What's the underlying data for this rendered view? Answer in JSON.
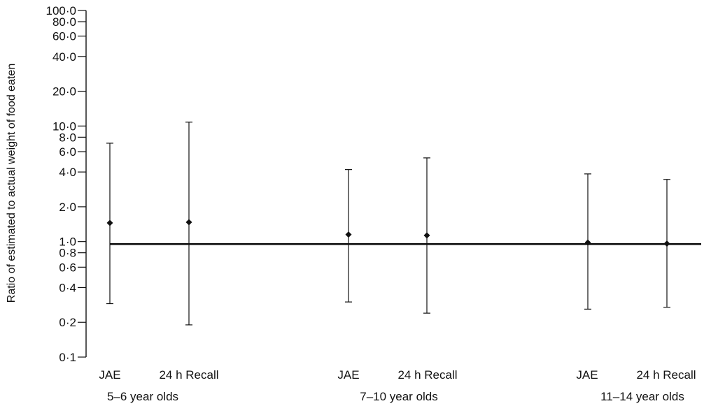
{
  "chart_data": {
    "type": "scatter",
    "title": "",
    "ylabel": "Ratio of estimated to actual weight of food eaten",
    "y_scale": "log",
    "ylim": [
      0.1,
      100.0
    ],
    "y_ticks": [
      0.1,
      0.2,
      0.4,
      0.6,
      0.8,
      1.0,
      2.0,
      4.0,
      6.0,
      8.0,
      10.0,
      20.0,
      40.0,
      60.0,
      80.0,
      100.0
    ],
    "y_tick_labels": [
      "0·1",
      "0·2",
      "0·4",
      "0·6",
      "0·8",
      "1·0",
      "2·0",
      "4·0",
      "6·0",
      "8·0",
      "10·0",
      "20·0",
      "40·0",
      "60·0",
      "80·0",
      "100·0"
    ],
    "reference_line": 0.95,
    "grid": false,
    "groups": [
      {
        "label": "5–6 year olds",
        "points": [
          {
            "method": "JAE",
            "value": 1.45,
            "lower": 0.29,
            "upper": 7.1
          },
          {
            "method": "24 h Recall",
            "value": 1.47,
            "lower": 0.19,
            "upper": 10.8
          }
        ]
      },
      {
        "label": "7–10 year olds",
        "points": [
          {
            "method": "JAE",
            "value": 1.15,
            "lower": 0.3,
            "upper": 4.2
          },
          {
            "method": "24 h Recall",
            "value": 1.13,
            "lower": 0.24,
            "upper": 5.3
          }
        ]
      },
      {
        "label": "11–14 year olds",
        "points": [
          {
            "method": "JAE",
            "value": 0.98,
            "lower": 0.26,
            "upper": 3.85
          },
          {
            "method": "24 h Recall",
            "value": 0.96,
            "lower": 0.27,
            "upper": 3.45
          }
        ]
      }
    ]
  }
}
